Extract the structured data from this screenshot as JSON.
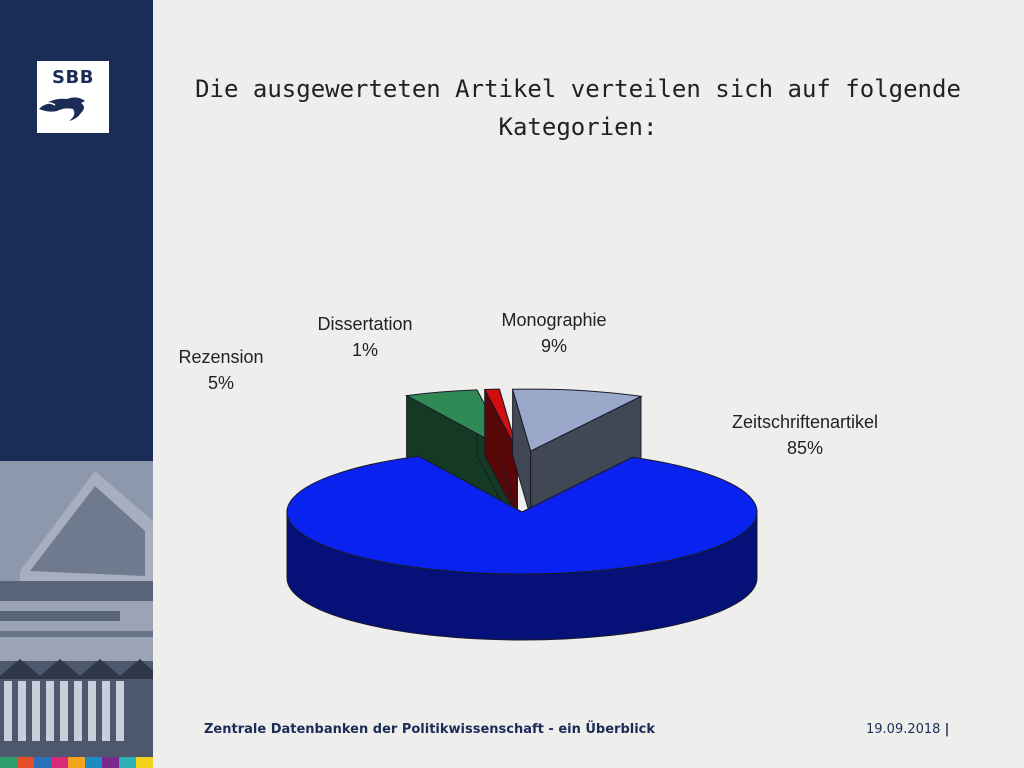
{
  "logo": {
    "text": "SBB"
  },
  "slide": {
    "title": "Die ausgewerteten Artikel verteilen sich auf folgende Kategorien:"
  },
  "footer": {
    "text": "Zentrale Datenbanken der Politikwissenschaft - ein Überblick",
    "date": "19.09.2018",
    "separator": "|"
  },
  "chart_data": {
    "type": "pie",
    "title": "",
    "slices": [
      {
        "name": "Zeitschriftenartikel",
        "value": 85,
        "label": "85%",
        "color": "#0a22f0",
        "exploded": false
      },
      {
        "name": "Rezension",
        "value": 5,
        "label": "5%",
        "color": "#2f8a55",
        "exploded": true
      },
      {
        "name": "Dissertation",
        "value": 1,
        "label": "1%",
        "color": "#d10f0f",
        "exploded": true
      },
      {
        "name": "Monographie",
        "value": 9,
        "label": "9%",
        "color": "#9aa8c9",
        "exploded": true
      }
    ],
    "style": "3d",
    "legend": "none"
  },
  "colors": {
    "sidebar": "#1b2c57",
    "background": "#eeeeec"
  }
}
